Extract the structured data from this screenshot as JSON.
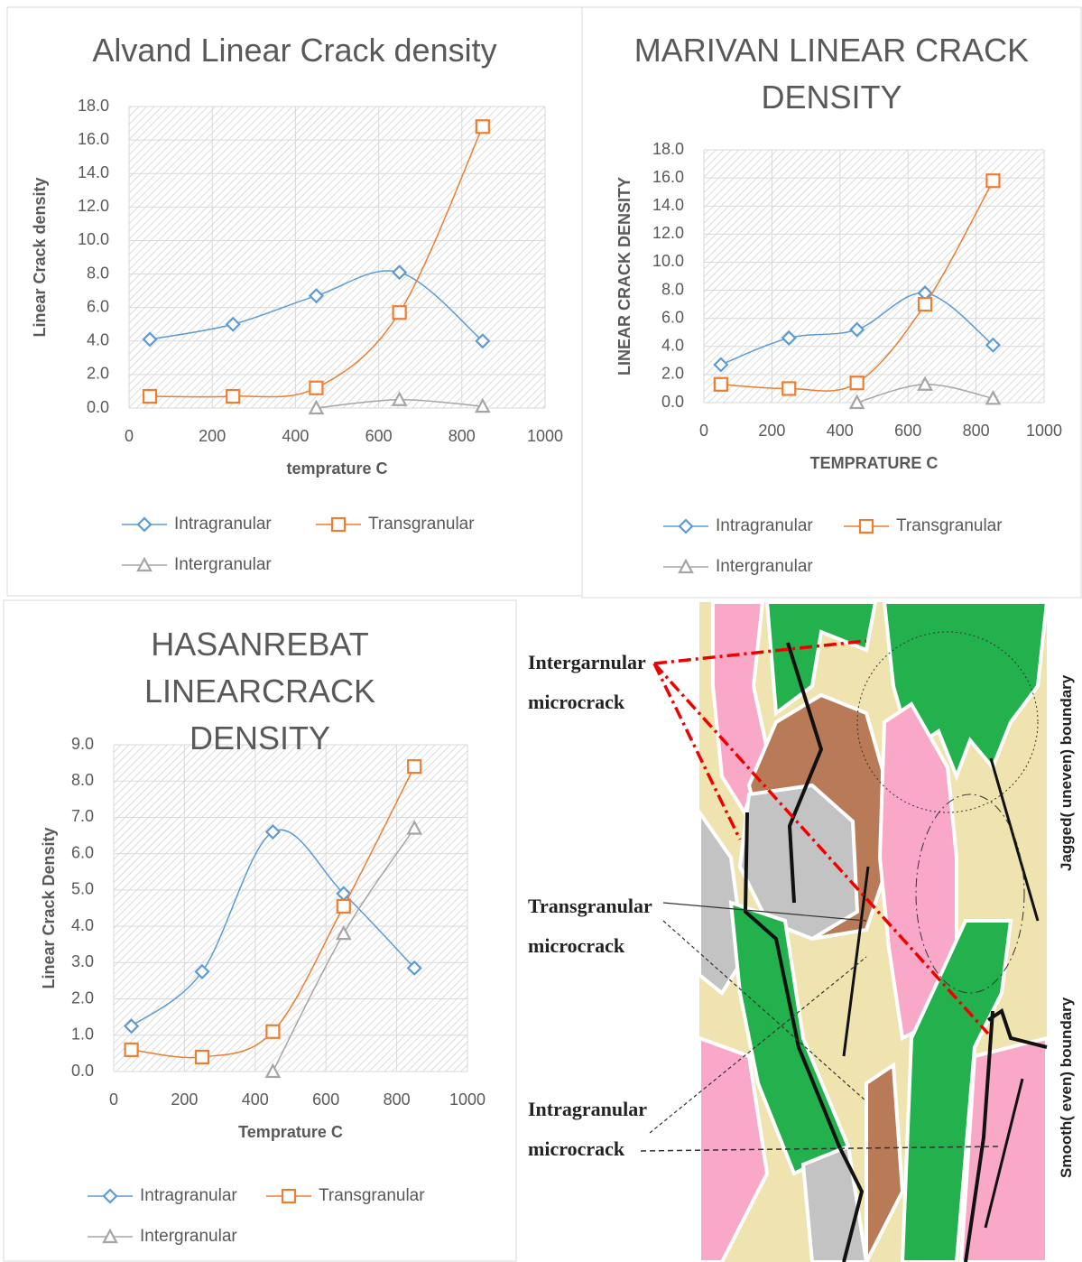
{
  "chart_data": [
    {
      "type": "line",
      "title": "Alvand Linear Crack density",
      "x_label": "temprature C",
      "y_label": "Linear Crack density",
      "x": [
        50,
        250,
        450,
        650,
        850
      ],
      "series": [
        {
          "name": "Intragranular",
          "color": "#5b9bd5",
          "marker": "diamond",
          "values": [
            4.1,
            5.0,
            6.7,
            8.1,
            4.0
          ]
        },
        {
          "name": "Transgranular",
          "color": "#ed7d31",
          "marker": "square",
          "values": [
            0.7,
            0.7,
            1.2,
            5.7,
            16.8
          ]
        },
        {
          "name": "Intergranular",
          "color": "#a5a5a5",
          "marker": "triangle",
          "values": [
            null,
            null,
            0.0,
            0.5,
            0.1
          ]
        }
      ],
      "xlim": [
        0,
        1000
      ],
      "xticks": [
        0,
        200,
        400,
        600,
        800,
        1000
      ],
      "ylim": [
        0,
        18
      ],
      "yticks": [
        {
          "value": 0,
          "label": "0.0"
        },
        {
          "value": 2,
          "label": "2.0"
        },
        {
          "value": 4,
          "label": "4.0"
        },
        {
          "value": 6,
          "label": "6.0"
        },
        {
          "value": 8,
          "label": "8.0"
        },
        {
          "value": 10,
          "label": "10.0"
        },
        {
          "value": 12,
          "label": "12.0"
        },
        {
          "value": 14,
          "label": "14.0"
        },
        {
          "value": 16,
          "label": "16.0"
        },
        {
          "value": 18,
          "label": "18.0"
        }
      ],
      "grid": true,
      "legend": "bottom"
    },
    {
      "type": "line",
      "title": "MARIVAN LINEAR CRACK DENSITY",
      "x_label": "TEMPRATURE C",
      "y_label": "LINEAR CRACK DENSITY",
      "x": [
        50,
        250,
        450,
        650,
        850
      ],
      "series": [
        {
          "name": "Intragranular",
          "color": "#5b9bd5",
          "marker": "diamond",
          "values": [
            2.7,
            4.6,
            5.2,
            7.8,
            4.1
          ]
        },
        {
          "name": "Transgranular",
          "color": "#ed7d31",
          "marker": "square",
          "values": [
            1.3,
            1.0,
            1.4,
            7.0,
            15.8
          ]
        },
        {
          "name": "Intergranular",
          "color": "#a5a5a5",
          "marker": "triangle",
          "values": [
            null,
            null,
            0.0,
            1.3,
            0.3
          ]
        }
      ],
      "xlim": [
        0,
        1000
      ],
      "xticks": [
        0,
        200,
        400,
        600,
        800,
        1000
      ],
      "ylim": [
        0,
        18
      ],
      "yticks": [
        {
          "value": 0,
          "label": "0.0"
        },
        {
          "value": 2,
          "label": "2.0"
        },
        {
          "value": 4,
          "label": "4.0"
        },
        {
          "value": 6,
          "label": "6.0"
        },
        {
          "value": 8,
          "label": "8.0"
        },
        {
          "value": 10,
          "label": "10.0"
        },
        {
          "value": 12,
          "label": "12.0"
        },
        {
          "value": 14,
          "label": "14.0"
        },
        {
          "value": 16,
          "label": "16.0"
        },
        {
          "value": 18,
          "label": "18.0"
        }
      ],
      "grid": true,
      "legend": "bottom"
    },
    {
      "type": "line",
      "title": "HASANREBAT LINEARCRACK DENSITY",
      "x_label": "Temprature C",
      "y_label": "Linear Crack Density",
      "x": [
        50,
        250,
        450,
        650,
        850
      ],
      "series": [
        {
          "name": "Intragranular",
          "color": "#5b9bd5",
          "marker": "diamond",
          "values": [
            1.25,
            2.75,
            6.6,
            4.9,
            2.85
          ]
        },
        {
          "name": "Transgranular",
          "color": "#ed7d31",
          "marker": "square",
          "values": [
            0.6,
            0.4,
            1.1,
            4.55,
            8.4
          ]
        },
        {
          "name": "Intergranular",
          "color": "#a5a5a5",
          "marker": "triangle",
          "values": [
            null,
            null,
            0.0,
            3.8,
            6.7
          ]
        }
      ],
      "xlim": [
        0,
        1000
      ],
      "xticks": [
        0,
        200,
        400,
        600,
        800,
        1000
      ],
      "ylim": [
        0,
        9
      ],
      "yticks": [
        {
          "value": 0,
          "label": "0.0"
        },
        {
          "value": 1,
          "label": "1.0"
        },
        {
          "value": 2,
          "label": "2.0"
        },
        {
          "value": 3,
          "label": "3.0"
        },
        {
          "value": 4,
          "label": "4.0"
        },
        {
          "value": 5,
          "label": "5.0"
        },
        {
          "value": 6,
          "label": "6.0"
        },
        {
          "value": 7,
          "label": "7.0"
        },
        {
          "value": 8,
          "label": "8.0"
        },
        {
          "value": 9,
          "label": "9.0"
        }
      ],
      "grid": true,
      "legend": "bottom"
    }
  ],
  "diagram": {
    "labels": [
      "Intergarnular microcrack",
      "Transgranular microcrack",
      "Intragranular microcrack",
      "Jagged( uneven) boundary",
      "Smooth( even) boundary"
    ]
  }
}
